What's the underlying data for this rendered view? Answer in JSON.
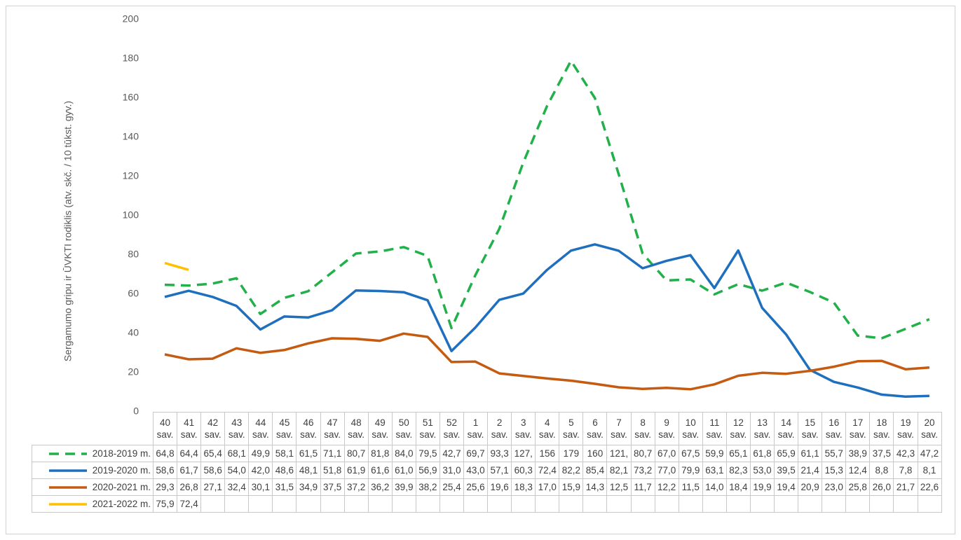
{
  "chart_data": {
    "type": "line",
    "ylabel": "Sergamumo gripu ir ŪVKTI rodiklis (atv. skč. / 10 tūkst. gyv.)",
    "categories": [
      "40 sav.",
      "41 sav.",
      "42 sav.",
      "43 sav.",
      "44 sav.",
      "45 sav.",
      "46 sav.",
      "47 sav.",
      "48 sav.",
      "49 sav.",
      "50 sav.",
      "51 sav.",
      "52 sav.",
      "1 sav.",
      "2 sav.",
      "3 sav.",
      "4 sav.",
      "5 sav.",
      "6 sav.",
      "7 sav.",
      "8 sav.",
      "9 sav.",
      "10 sav.",
      "11 sav.",
      "12 sav.",
      "13 sav.",
      "14 sav.",
      "15 sav.",
      "16 sav.",
      "17 sav.",
      "18 sav.",
      "19 sav.",
      "20 sav."
    ],
    "ylim": [
      0,
      200
    ],
    "yticks": [
      0,
      20,
      40,
      60,
      80,
      100,
      120,
      140,
      160,
      180,
      200
    ],
    "grid": false,
    "series": [
      {
        "name": "2018-2019 m.",
        "color": "#22b04b",
        "line_style": "dashed",
        "values": [
          64.8,
          64.4,
          65.4,
          68.1,
          49.9,
          58.1,
          61.5,
          71.1,
          80.7,
          81.8,
          84.0,
          79.5,
          42.7,
          69.7,
          93.3,
          127,
          156,
          179,
          160,
          121,
          80.7,
          67.0,
          67.5,
          59.9,
          65.1,
          61.8,
          65.9,
          61.1,
          55.7,
          38.9,
          37.5,
          42.3,
          47.2
        ],
        "value_labels": [
          "64,8",
          "64,4",
          "65,4",
          "68,1",
          "49,9",
          "58,1",
          "61,5",
          "71,1",
          "80,7",
          "81,8",
          "84,0",
          "79,5",
          "42,7",
          "69,7",
          "93,3",
          "127,",
          "156",
          "179",
          "160",
          "121,",
          "80,7",
          "67,0",
          "67,5",
          "59,9",
          "65,1",
          "61,8",
          "65,9",
          "61,1",
          "55,7",
          "38,9",
          "37,5",
          "42,3",
          "47,2"
        ]
      },
      {
        "name": "2019-2020 m.",
        "color": "#1f6fbf",
        "line_style": "solid",
        "values": [
          58.6,
          61.7,
          58.6,
          54.0,
          42.0,
          48.6,
          48.1,
          51.8,
          61.9,
          61.6,
          61.0,
          56.9,
          31.0,
          43.0,
          57.1,
          60.3,
          72.4,
          82.2,
          85.4,
          82.1,
          73.2,
          77.0,
          79.9,
          63.1,
          82.3,
          53.0,
          39.5,
          21.4,
          15.3,
          12.4,
          8.8,
          7.8,
          8.1
        ],
        "value_labels": [
          "58,6",
          "61,7",
          "58,6",
          "54,0",
          "42,0",
          "48,6",
          "48,1",
          "51,8",
          "61,9",
          "61,6",
          "61,0",
          "56,9",
          "31,0",
          "43,0",
          "57,1",
          "60,3",
          "72,4",
          "82,2",
          "85,4",
          "82,1",
          "73,2",
          "77,0",
          "79,9",
          "63,1",
          "82,3",
          "53,0",
          "39,5",
          "21,4",
          "15,3",
          "12,4",
          "8,8",
          "7,8",
          "8,1"
        ]
      },
      {
        "name": "2020-2021 m.",
        "color": "#c55a11",
        "line_style": "solid",
        "values": [
          29.3,
          26.8,
          27.1,
          32.4,
          30.1,
          31.5,
          34.9,
          37.5,
          37.2,
          36.2,
          39.9,
          38.2,
          25.4,
          25.6,
          19.6,
          18.3,
          17.0,
          15.9,
          14.3,
          12.5,
          11.7,
          12.2,
          11.5,
          14.0,
          18.4,
          19.9,
          19.4,
          20.9,
          23.0,
          25.8,
          26.0,
          21.7,
          22.6
        ],
        "value_labels": [
          "29,3",
          "26,8",
          "27,1",
          "32,4",
          "30,1",
          "31,5",
          "34,9",
          "37,5",
          "37,2",
          "36,2",
          "39,9",
          "38,2",
          "25,4",
          "25,6",
          "19,6",
          "18,3",
          "17,0",
          "15,9",
          "14,3",
          "12,5",
          "11,7",
          "12,2",
          "11,5",
          "14,0",
          "18,4",
          "19,9",
          "19,4",
          "20,9",
          "23,0",
          "25,8",
          "26,0",
          "21,7",
          "22,6"
        ]
      },
      {
        "name": "2021-2022 m.",
        "color": "#ffc000",
        "line_style": "solid",
        "values": [
          75.9,
          72.4,
          null,
          null,
          null,
          null,
          null,
          null,
          null,
          null,
          null,
          null,
          null,
          null,
          null,
          null,
          null,
          null,
          null,
          null,
          null,
          null,
          null,
          null,
          null,
          null,
          null,
          null,
          null,
          null,
          null,
          null,
          null
        ],
        "value_labels": [
          "75,9",
          "72,4",
          null,
          null,
          null,
          null,
          null,
          null,
          null,
          null,
          null,
          null,
          null,
          null,
          null,
          null,
          null,
          null,
          null,
          null,
          null,
          null,
          null,
          null,
          null,
          null,
          null,
          null,
          null,
          null,
          null,
          null,
          null
        ]
      }
    ]
  }
}
